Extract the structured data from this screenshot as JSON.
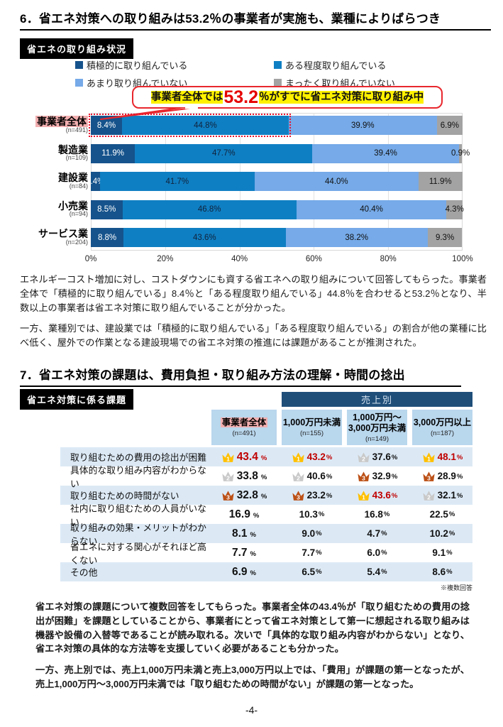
{
  "page": {
    "number": "-4-"
  },
  "section6": {
    "title": "6．省エネ対策への取り組みは53.2％の事業者が実施も、業種によりばらつき",
    "badge": "省エネの取り組み状況",
    "callout": {
      "pre": "事業者全体では",
      "value": "53.2",
      "post": "％がすでに省エネ対策に取り組み中"
    },
    "paragraphs": [
      "エネルギーコスト増加に対し、コストダウンにも資する省エネへの取り組みについて回答してもらった。事業者全体で「積極的に取り組んでいる」8.4％と「ある程度取り組んでいる」44.8％を合わせると53.2％となり、半数以上の事業者は省エネ対策に取り組んでいることが分かった。",
      "一方、業種別では、建設業では「積極的に取り組んでいる」「ある程度取り組んでいる」の割合が他の業種に比べ低く、屋外での作業となる建設現場での省エネ対策の推進には課題があることが推測された。"
    ],
    "chart_data": {
      "type": "bar",
      "stacked": true,
      "orientation": "horizontal",
      "categories": [
        "事業者全体",
        "製造業",
        "建設業",
        "小売業",
        "サービス業"
      ],
      "category_n": [
        "(n=491)",
        "(n=109)",
        "(n=84)",
        "(n=94)",
        "(n=204)"
      ],
      "series": [
        {
          "name": "積極的に取り組んでいる",
          "color": "#16538c",
          "label_color": "#ffffff",
          "values": [
            8.4,
            11.9,
            2.4,
            8.5,
            8.8
          ]
        },
        {
          "name": "ある程度取り組んでいる",
          "color": "#0f7fc3",
          "label_color": "#10233c",
          "values": [
            44.8,
            47.7,
            41.7,
            46.8,
            43.6
          ]
        },
        {
          "name": "あまり取り組んでいない",
          "color": "#76aae8",
          "label_color": "#111111",
          "values": [
            39.9,
            39.4,
            44.0,
            40.4,
            38.2
          ]
        },
        {
          "name": "まったく取り組んでいない",
          "color": "#a3a3a3",
          "label_color": "#111111",
          "values": [
            6.9,
            0.9,
            11.9,
            4.3,
            9.3
          ]
        }
      ],
      "x_ticks": [
        "0%",
        "20%",
        "40%",
        "60%",
        "80%",
        "100%"
      ],
      "xlim": [
        0,
        100
      ],
      "grid": true,
      "highlight_category": "事業者全体",
      "highlight_box_pct": 53.2
    }
  },
  "section7": {
    "title": "7．省エネ対策の課題は、費用負担・取り組み方法の理解・時間の捻出",
    "badge": "省エネ対策に係る課題",
    "table": {
      "banner": "売上別",
      "columns": [
        {
          "lines": [
            "事業者全体"
          ],
          "n": "(n=491)",
          "highlight": true
        },
        {
          "lines": [
            "1,000万円未満"
          ],
          "n": "(n=155)",
          "highlight": false
        },
        {
          "lines": [
            "1,000万円～",
            "3,000万円未満"
          ],
          "n": "(n=149)",
          "highlight": false
        },
        {
          "lines": [
            "3,000万円以上"
          ],
          "n": "(n=187)",
          "highlight": false
        }
      ],
      "rows": [
        {
          "label": "取り組むための費用の捻出が困難",
          "cells": [
            {
              "value": "43.4",
              "rank": 1,
              "red": true
            },
            {
              "value": "43.2",
              "rank": 1,
              "red": true
            },
            {
              "value": "37.6",
              "rank": 2,
              "red": false
            },
            {
              "value": "48.1",
              "rank": 1,
              "red": true
            }
          ]
        },
        {
          "label": "具体的な取り組み内容がわからない",
          "cells": [
            {
              "value": "33.8",
              "rank": 2,
              "red": false
            },
            {
              "value": "40.6",
              "rank": 2,
              "red": false
            },
            {
              "value": "32.9",
              "rank": 3,
              "red": false
            },
            {
              "value": "28.9",
              "rank": 3,
              "red": false
            }
          ]
        },
        {
          "label": "取り組むための時間がない",
          "cells": [
            {
              "value": "32.8",
              "rank": 3,
              "red": false
            },
            {
              "value": "23.2",
              "rank": 3,
              "red": false
            },
            {
              "value": "43.6",
              "rank": 1,
              "red": true
            },
            {
              "value": "32.1",
              "rank": 2,
              "red": false
            }
          ]
        },
        {
          "label": "社内に取り組むための人員がいない",
          "cells": [
            {
              "value": "16.9",
              "rank": 0,
              "red": false
            },
            {
              "value": "10.3",
              "rank": 0,
              "red": false
            },
            {
              "value": "16.8",
              "rank": 0,
              "red": false
            },
            {
              "value": "22.5",
              "rank": 0,
              "red": false
            }
          ]
        },
        {
          "label": "取り組みの効果・メリットがわからない",
          "cells": [
            {
              "value": "8.1",
              "rank": 0,
              "red": false
            },
            {
              "value": "9.0",
              "rank": 0,
              "red": false
            },
            {
              "value": "4.7",
              "rank": 0,
              "red": false
            },
            {
              "value": "10.2",
              "rank": 0,
              "red": false
            }
          ]
        },
        {
          "label": "省エネに対する関心がそれほど高くない",
          "cells": [
            {
              "value": "7.7",
              "rank": 0,
              "red": false
            },
            {
              "value": "7.7",
              "rank": 0,
              "red": false
            },
            {
              "value": "6.0",
              "rank": 0,
              "red": false
            },
            {
              "value": "9.1",
              "rank": 0,
              "red": false
            }
          ]
        },
        {
          "label": "その他",
          "cells": [
            {
              "value": "6.9",
              "rank": 0,
              "red": false
            },
            {
              "value": "6.5",
              "rank": 0,
              "red": false
            },
            {
              "value": "5.4",
              "rank": 0,
              "red": false
            },
            {
              "value": "8.6",
              "rank": 0,
              "red": false
            }
          ]
        }
      ],
      "rank_colors": {
        "1": "#ffc000",
        "2": "#c9c9c9",
        "3": "#bc5016"
      },
      "red_color": "#c00000",
      "note": "※複数回答"
    },
    "paragraphs": [
      "省エネ対策の課題について複数回答をしてもらった。事業者全体の43.4％が「取り組むための費用の捻出が困難」を課題としていることから、事業者にとって省エネ対策として第一に想起される取り組みは機器や設備の入替等であることが読み取れる。次いで「具体的な取り組み内容がわからない」となり、省エネ対策の具体的な方法等を支援していく必要があることも分かった。",
      "一方、売上別では、売上1,000万円未満と売上3,000万円以上では、「費用」が課題の第一となったが、売上1,000万円～3,000万円未満では「取り組むための時間がない」が課題の第一となった。"
    ]
  }
}
